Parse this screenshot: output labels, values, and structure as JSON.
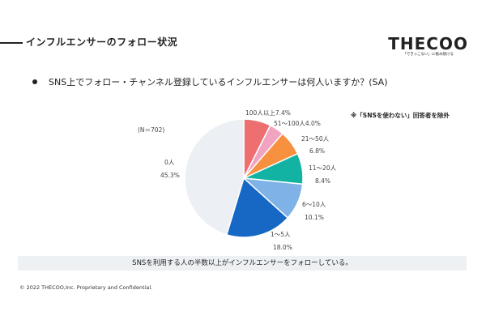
{
  "page": {
    "title": "インフルエンサーのフォロー状況",
    "logo": "THECOO",
    "logo_sub": "「できっこない」に挑み続ける",
    "question": "SNS上でフォロー・チャンネル登録しているインフルエンサーは何人いますか？(SA)",
    "note": "※「SNSを使わない」回答者を除外",
    "summary": "SNSを利用する人の半数以上がインフルエンサーをフォローしている。",
    "footer": "© 2022 THECOO,Inc. Proprietary and Confidential."
  },
  "chart_data": {
    "type": "pie",
    "sample": "(N＝702)",
    "slices": [
      {
        "name": "100人以上",
        "value": 7.4,
        "label": "100人以上7.4%",
        "color": "#ee6f6f"
      },
      {
        "name": "51〜100人",
        "value": 4.0,
        "label": "51〜100人4.0%",
        "color": "#f1a3c0"
      },
      {
        "name": "21〜50人",
        "value": 6.8,
        "label_line1": "21〜50人",
        "label_line2": "6.8%",
        "color": "#f7903f"
      },
      {
        "name": "11〜20人",
        "value": 8.4,
        "label_line1": "11〜20人",
        "label_line2": "8.4%",
        "color": "#13b3a3"
      },
      {
        "name": "6〜10人",
        "value": 10.1,
        "label_line1": "6〜10人",
        "label_line2": "10.1%",
        "color": "#7fb2e6"
      },
      {
        "name": "1〜5人",
        "value": 18.0,
        "label_line1": "1〜5人",
        "label_line2": "18.0%",
        "color": "#1668c4"
      },
      {
        "name": "0人",
        "value": 45.3,
        "label_line1": "0人",
        "label_line2": "45.3%",
        "color": "#eceff3"
      }
    ]
  }
}
